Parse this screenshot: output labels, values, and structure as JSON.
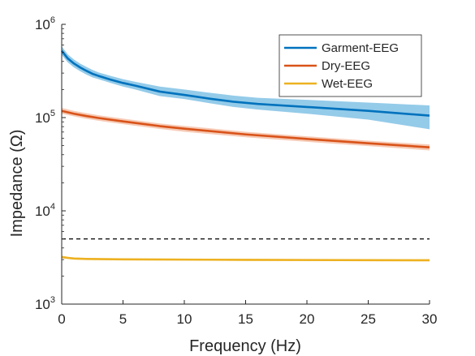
{
  "chart_data": {
    "type": "line",
    "xlabel": "Frequency (Hz)",
    "ylabel": "Impedance (Ω)",
    "xlim": [
      0,
      30
    ],
    "ylim": [
      1000,
      1000000
    ],
    "yscale": "log",
    "grid": false,
    "legend_position": "top-right",
    "x_ticks": [
      0,
      5,
      10,
      15,
      20,
      25,
      30
    ],
    "x_tick_labels": [
      "0",
      "5",
      "10",
      "15",
      "20",
      "25",
      "30"
    ],
    "y_ticks": [
      1000,
      10000,
      100000,
      1000000
    ],
    "y_tick_base": "10",
    "y_tick_exponents": [
      "3",
      "4",
      "5",
      "6"
    ],
    "series": [
      {
        "name": "Garment-EEG",
        "color": "#0072BD",
        "band_color": "#4DA8DA",
        "x": [
          0,
          0.5,
          1,
          1.5,
          2,
          2.5,
          3,
          4,
          5,
          6,
          8,
          10,
          12,
          14,
          16,
          20,
          25,
          30
        ],
        "y": [
          520000,
          430000,
          380000,
          345000,
          318000,
          295000,
          280000,
          255000,
          235000,
          220000,
          190000,
          175000,
          160000,
          148000,
          140000,
          130000,
          118000,
          105000
        ],
        "lower": [
          470000,
          390000,
          345000,
          315000,
          290000,
          270000,
          258000,
          235000,
          215000,
          200000,
          170000,
          158000,
          143000,
          130000,
          122000,
          110000,
          95000,
          75000
        ],
        "upper": [
          580000,
          475000,
          420000,
          380000,
          350000,
          325000,
          305000,
          280000,
          258000,
          242000,
          215000,
          200000,
          185000,
          172000,
          163000,
          155000,
          145000,
          135000
        ]
      },
      {
        "name": "Dry-EEG",
        "color": "#D95319",
        "band_color": "#F0A683",
        "x": [
          0,
          1,
          2,
          3,
          5,
          8,
          10,
          15,
          20,
          25,
          30
        ],
        "y": [
          118000,
          110000,
          104000,
          99000,
          91000,
          81000,
          76000,
          66000,
          59000,
          53000,
          48000
        ],
        "lower": [
          110000,
          103000,
          97000,
          92500,
          85000,
          75500,
          70500,
          61500,
          55000,
          49500,
          44500
        ],
        "upper": [
          127000,
          118000,
          111500,
          106000,
          97500,
          86500,
          81500,
          70500,
          63000,
          56500,
          51500
        ]
      },
      {
        "name": "Wet-EEG",
        "color": "#EDB120",
        "band_color": "#F5D27A",
        "x": [
          0,
          0.5,
          1,
          2,
          5,
          10,
          15,
          20,
          25,
          30
        ],
        "y": [
          3200,
          3130,
          3080,
          3050,
          3020,
          3000,
          2980,
          2970,
          2960,
          2950
        ],
        "lower": [
          3110,
          3045,
          3000,
          2975,
          2950,
          2930,
          2910,
          2900,
          2890,
          2880
        ],
        "upper": [
          3290,
          3215,
          3160,
          3125,
          3090,
          3070,
          3050,
          3040,
          3030,
          3020
        ]
      }
    ],
    "reference_line": {
      "y": 5000,
      "style": "dashed",
      "color": "#000000"
    }
  }
}
